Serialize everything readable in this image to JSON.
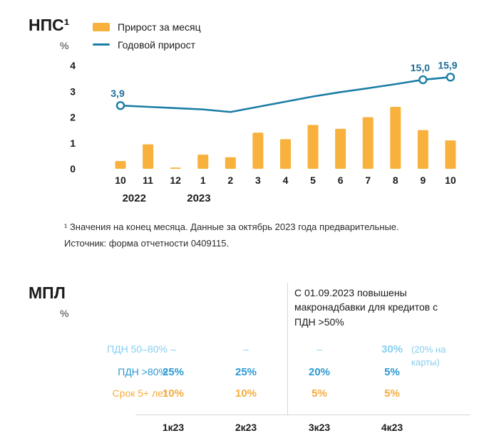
{
  "nps": {
    "title": "НПС¹",
    "unit": "%",
    "legend": {
      "bar_label": "Прирост за месяц",
      "line_label": "Годовой прирост"
    },
    "footnotes": [
      "¹ Значения на конец месяца. Данные за октябрь 2023 года предварительные.",
      "Источник: форма отчетности 0409115."
    ]
  },
  "chart_data": {
    "type": "bar+line",
    "categories": [
      "10",
      "11",
      "12",
      "1",
      "2",
      "3",
      "4",
      "5",
      "6",
      "7",
      "8",
      "9",
      "10"
    ],
    "year_labels": [
      {
        "label": "2022",
        "x_index": 0.5
      },
      {
        "label": "2023",
        "x_index": 2.85
      }
    ],
    "yticks": [
      0,
      1,
      2,
      3,
      4
    ],
    "ylim": [
      0,
      4
    ],
    "grid": false,
    "legend_position": "top",
    "series": [
      {
        "name": "Прирост за месяц",
        "type": "bar",
        "color": "#F8B13C",
        "values": [
          0.3,
          0.95,
          0.05,
          0.55,
          0.45,
          1.4,
          1.15,
          1.7,
          1.55,
          2.0,
          2.4,
          1.5,
          1.1
        ]
      },
      {
        "name": "Годовой прирост",
        "type": "line",
        "color": "#1A7DA5",
        "plotted_values": [
          2.45,
          2.4,
          2.35,
          2.3,
          2.2,
          2.4,
          2.6,
          2.8,
          2.97,
          3.12,
          3.28,
          3.45,
          3.55
        ],
        "point_labels": [
          {
            "index": 0,
            "label": "3,9",
            "value": 3.9
          },
          {
            "index": 11,
            "label": "15,0",
            "value": 15.0
          },
          {
            "index": 12,
            "label": "15,9",
            "value": 15.9
          }
        ],
        "marker_indices": [
          0,
          11,
          12
        ]
      }
    ]
  },
  "mpl": {
    "title": "МПЛ",
    "unit": "%",
    "annotation": "С 01.09.2023 повышены макронадбавки для кредитов с ПДН >50%",
    "columns": [
      "1к23",
      "2к23",
      "3к23",
      "4к23"
    ],
    "rows": [
      {
        "label": "ПДН 50–80%",
        "values": [
          "–",
          "–",
          "–",
          "30%"
        ],
        "note": "(20% на карты)"
      },
      {
        "label": "ПДН >80%",
        "values": [
          "25%",
          "25%",
          "20%",
          "5%"
        ]
      },
      {
        "label": "Срок 5+ лет",
        "values": [
          "10%",
          "10%",
          "5%",
          "5%"
        ]
      }
    ]
  },
  "colors": {
    "bar_orange": "#F8B13C",
    "line_blue": "#1A7DA5",
    "point_label_blue": "#1C6E96",
    "light_blue": "#85CFF0",
    "mid_blue": "#2B99D4",
    "orange_text": "#F5AC3E",
    "text_dark": "#1A1A1A",
    "divider": "#D8D8D8"
  }
}
